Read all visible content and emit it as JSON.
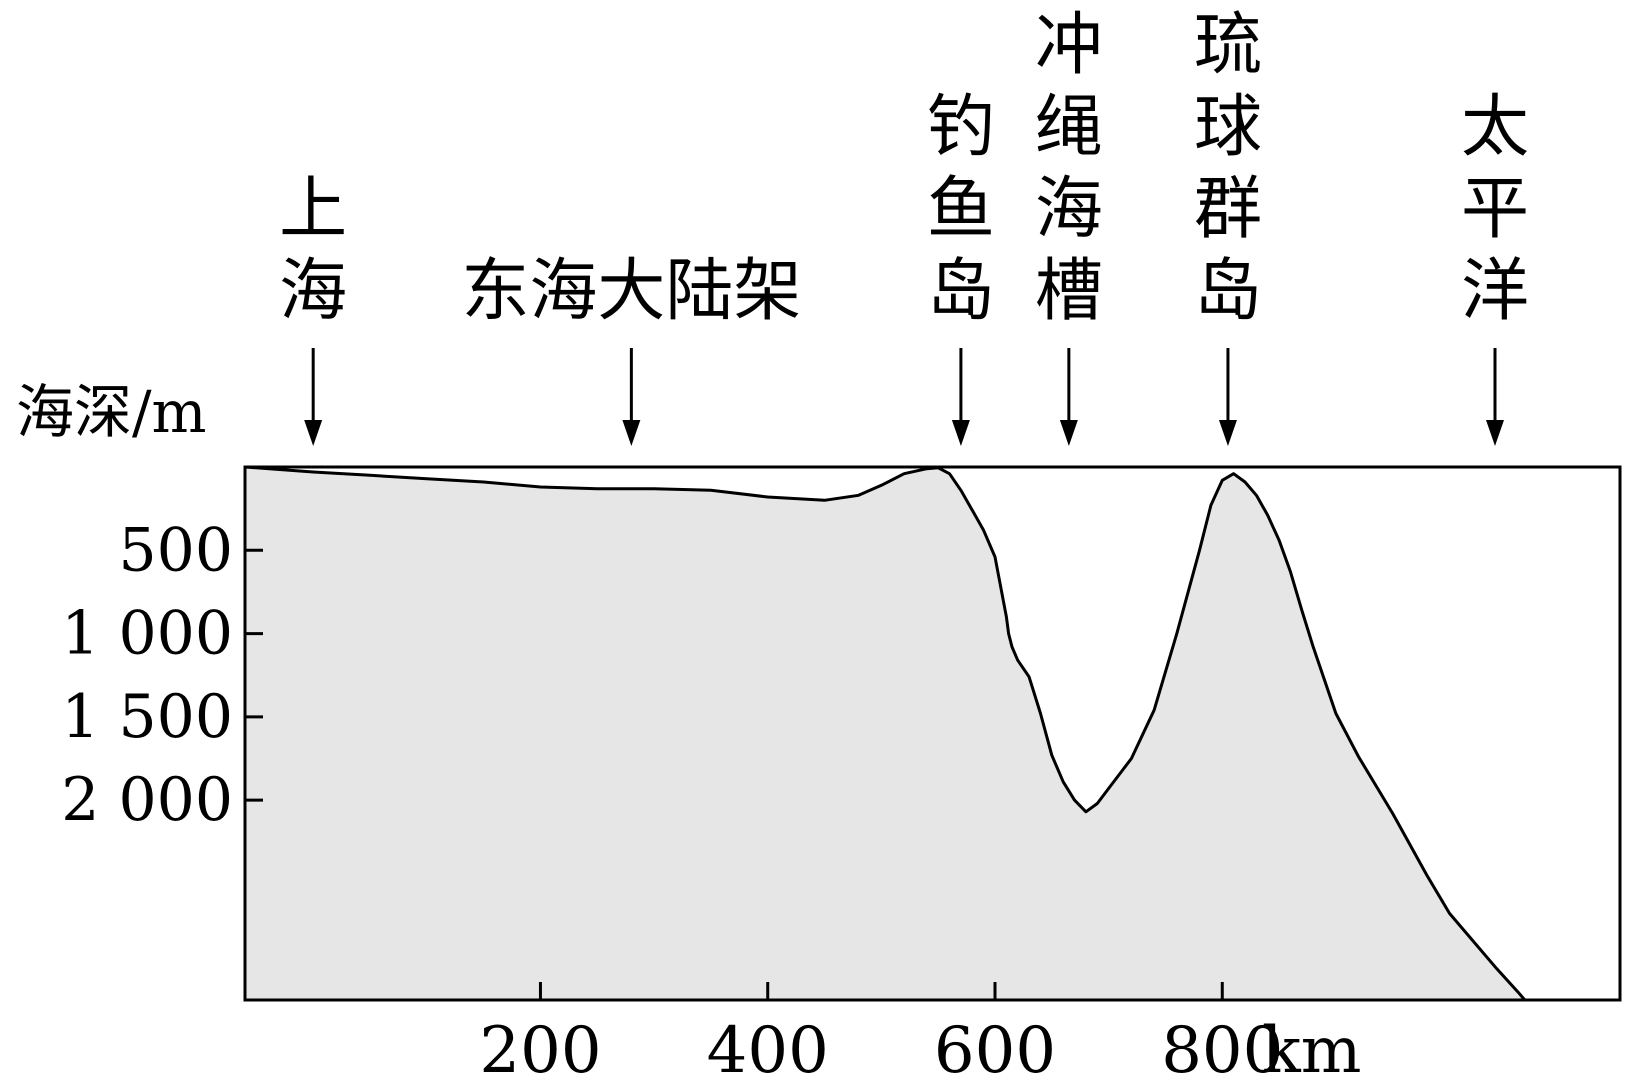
{
  "chart_data": {
    "type": "area",
    "title": "",
    "xlabel": "",
    "ylabel": "海深/m",
    "x_unit": "km",
    "xlim": [
      -60,
      1150
    ],
    "ylim": [
      0,
      3200
    ],
    "y_inverted": true,
    "grid": false,
    "x_ticks": [
      200,
      400,
      600,
      800
    ],
    "x_tick_labels": [
      "200",
      "400",
      "600",
      "800"
    ],
    "y_ticks": [
      500,
      1000,
      1500,
      2000
    ],
    "y_tick_labels": [
      "500",
      "1 000",
      "1 500",
      "2 000"
    ],
    "fill_color": "#e6e6e6",
    "line_color": "#000000",
    "series": [
      {
        "x": [
          -60,
          0,
          50,
          100,
          150,
          200,
          250,
          300,
          350,
          400,
          450,
          480,
          500,
          520,
          540,
          550,
          560,
          570,
          580,
          590,
          600,
          610,
          612,
          615,
          620,
          630,
          640,
          650,
          660,
          670,
          680,
          690,
          700,
          710,
          720,
          740,
          760,
          780,
          790,
          800,
          810,
          820,
          830,
          840,
          850,
          860,
          870,
          880,
          900,
          920,
          950,
          980,
          1000,
          1040,
          1060,
          1080,
          1090
        ],
        "y": [
          0,
          30,
          50,
          70,
          90,
          120,
          130,
          130,
          140,
          180,
          200,
          170,
          110,
          40,
          10,
          5,
          40,
          140,
          260,
          380,
          540,
          900,
          1000,
          1080,
          1160,
          1260,
          1480,
          1730,
          1890,
          2000,
          2070,
          2020,
          1930,
          1840,
          1750,
          1460,
          1000,
          500,
          230,
          80,
          40,
          90,
          170,
          290,
          440,
          630,
          860,
          1080,
          1480,
          1740,
          2080,
          2450,
          2680,
          3000,
          3150,
          3310,
          3400
        ]
      }
    ],
    "annotations": [
      {
        "label": "上海",
        "x": 0
      },
      {
        "label": "东海大陆架",
        "x": 280
      },
      {
        "label": "钓鱼岛",
        "x": 570
      },
      {
        "label": "冲绳海槽",
        "x": 665
      },
      {
        "label": "琉球群岛",
        "x": 805
      },
      {
        "label": "太平洋",
        "x": 1040
      }
    ]
  }
}
